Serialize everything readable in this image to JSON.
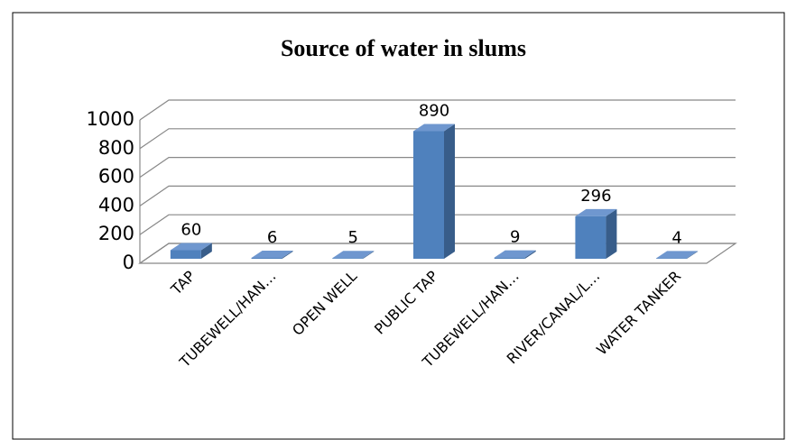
{
  "chart_data": {
    "type": "bar3d",
    "title": "Source of water in slums",
    "categories": [
      "TAP",
      "TUBEWELL/HAN…",
      "OPEN WELL",
      "PUBLIC TAP",
      "TUBEWELL/HAN…",
      "RIVER/CANAL/L…",
      "WATER TANKER"
    ],
    "values": [
      60,
      6,
      5,
      890,
      9,
      296,
      4
    ],
    "color": "#4f81bd",
    "ylim": [
      0,
      1000
    ],
    "yticks": [
      0,
      200,
      400,
      600,
      800,
      1000
    ],
    "grid": true
  }
}
